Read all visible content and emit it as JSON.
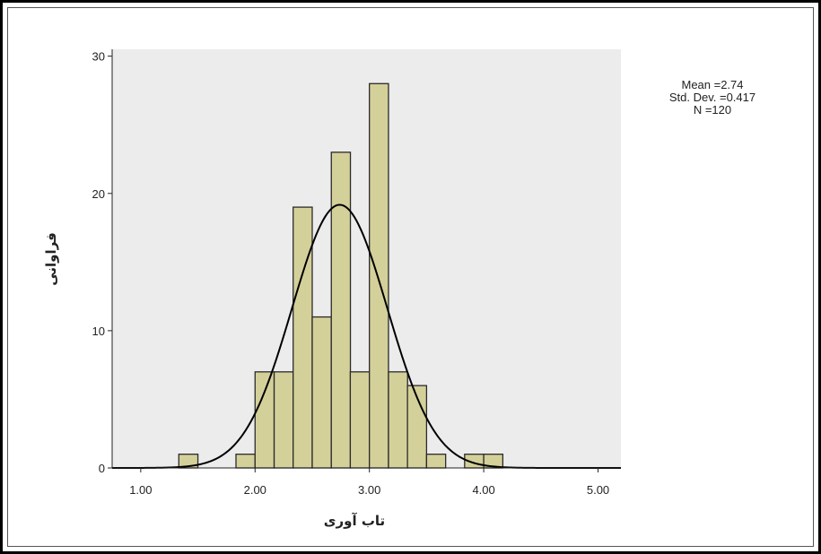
{
  "chart_data": {
    "type": "bar",
    "subtype": "histogram",
    "xlabel": "تاب آوری",
    "ylabel": "فراوانی",
    "xlim": [
      0.75,
      5.2
    ],
    "ylim": [
      0,
      30.5
    ],
    "x_ticks": [
      "1.00",
      "2.00",
      "3.00",
      "4.00",
      "5.00"
    ],
    "x_tick_values": [
      1,
      2,
      3,
      4,
      5
    ],
    "y_ticks": [
      "0",
      "10",
      "20",
      "30"
    ],
    "y_tick_values": [
      0,
      10,
      20,
      30
    ],
    "bin_width": 0.167,
    "bins": [
      {
        "start": 1.333,
        "count": 1
      },
      {
        "start": 1.833,
        "count": 1
      },
      {
        "start": 2.0,
        "count": 7
      },
      {
        "start": 2.167,
        "count": 7
      },
      {
        "start": 2.333,
        "count": 19
      },
      {
        "start": 2.5,
        "count": 11
      },
      {
        "start": 2.667,
        "count": 23
      },
      {
        "start": 2.833,
        "count": 7
      },
      {
        "start": 3.0,
        "count": 28
      },
      {
        "start": 3.167,
        "count": 7
      },
      {
        "start": 3.333,
        "count": 6
      },
      {
        "start": 3.5,
        "count": 1
      },
      {
        "start": 3.833,
        "count": 1
      },
      {
        "start": 4.0,
        "count": 1
      }
    ],
    "normal_curve": {
      "mean": 2.74,
      "std": 0.417,
      "n": 120
    },
    "stats": {
      "mean": "Mean =2.74",
      "std": "Std. Dev. =0.417",
      "n": "N =120"
    },
    "grid": false,
    "colors": {
      "bar_fill": "#d4d09a",
      "bar_stroke": "#2a2a2a",
      "plot_bg": "#ececec",
      "curve": "#000000"
    }
  }
}
